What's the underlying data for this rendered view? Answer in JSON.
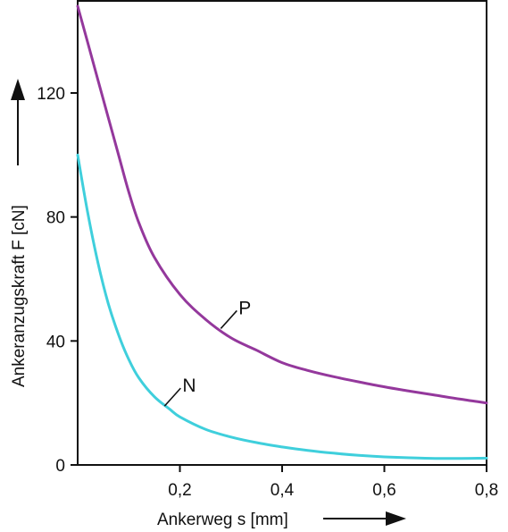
{
  "chart_data": {
    "type": "line",
    "xlabel": "Ankerweg s [mm]",
    "ylabel": "Ankeranzugskraft F [cN]",
    "xlim": [
      0,
      0.8
    ],
    "ylim": [
      0,
      150
    ],
    "x_ticks": [
      {
        "value": 0.2,
        "label": "0,2"
      },
      {
        "value": 0.4,
        "label": "0,4"
      },
      {
        "value": 0.6,
        "label": "0,6"
      },
      {
        "value": 0.8,
        "label": "0,8"
      }
    ],
    "y_ticks": [
      {
        "value": 0,
        "label": "0"
      },
      {
        "value": 40,
        "label": "40"
      },
      {
        "value": 80,
        "label": "80"
      },
      {
        "value": 120,
        "label": "120"
      }
    ],
    "grid": false,
    "series": [
      {
        "name": "P",
        "color": "#94389c",
        "x": [
          0,
          0.02,
          0.05,
          0.08,
          0.1,
          0.12,
          0.15,
          0.2,
          0.25,
          0.3,
          0.35,
          0.4,
          0.45,
          0.5,
          0.55,
          0.6,
          0.65,
          0.7,
          0.75,
          0.8
        ],
        "y": [
          148,
          136,
          118,
          100,
          88,
          78,
          67,
          55,
          47,
          41,
          37,
          33,
          30.5,
          28.5,
          26.8,
          25.2,
          23.8,
          22.5,
          21.2,
          20
        ],
        "label_at": {
          "x": 0.28,
          "y": 44
        }
      },
      {
        "name": "N",
        "color": "#3fcfdc",
        "x": [
          0,
          0.02,
          0.04,
          0.06,
          0.08,
          0.1,
          0.12,
          0.15,
          0.18,
          0.2,
          0.25,
          0.3,
          0.35,
          0.4,
          0.45,
          0.5,
          0.55,
          0.6,
          0.65,
          0.7,
          0.75,
          0.8
        ],
        "y": [
          100,
          81,
          65,
          52,
          42,
          34,
          28,
          22,
          18,
          15.5,
          11.5,
          9,
          7.2,
          5.8,
          4.7,
          3.8,
          3.1,
          2.6,
          2.3,
          2.1,
          2.1,
          2.2
        ],
        "label_at": {
          "x": 0.17,
          "y": 19
        }
      }
    ]
  }
}
